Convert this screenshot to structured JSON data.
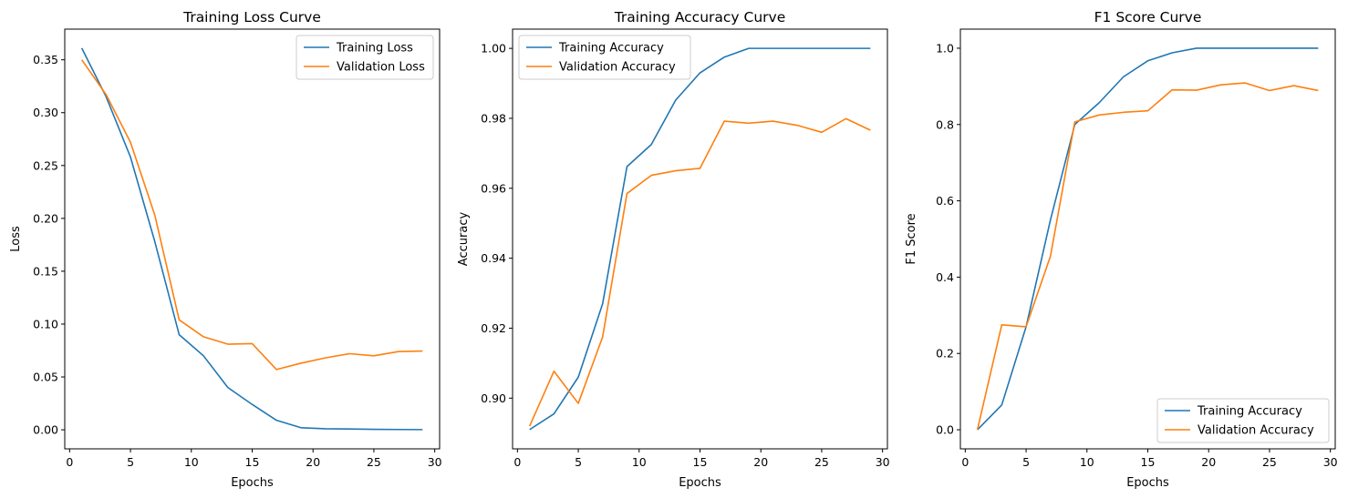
{
  "colors": {
    "series1": "#1f77b4",
    "series2": "#ff7f0e"
  },
  "chart_data": [
    {
      "type": "line",
      "title": "Training Loss Curve",
      "xlabel": "Epochs",
      "ylabel": "Loss",
      "xlim": [
        -0.4,
        30.4
      ],
      "ylim": [
        -0.018,
        0.379
      ],
      "xticks": [
        0,
        5,
        10,
        15,
        20,
        25,
        30
      ],
      "xtick_labels": [
        "0",
        "5",
        "10",
        "15",
        "20",
        "25",
        "30"
      ],
      "yticks": [
        0,
        0.05,
        0.1,
        0.15,
        0.2,
        0.25,
        0.3,
        0.35
      ],
      "ytick_labels": [
        "0.00",
        "0.05",
        "0.10",
        "0.15",
        "0.20",
        "0.25",
        "0.30",
        "0.35"
      ],
      "legend_position": "top-right",
      "grid": false,
      "x": [
        1,
        3,
        5,
        7,
        9,
        11,
        13,
        15,
        17,
        19,
        21,
        23,
        25,
        27,
        29
      ],
      "series": [
        {
          "name": "Training Loss",
          "values": [
            0.361,
            0.315,
            0.258,
            0.178,
            0.09,
            0.07,
            0.04,
            0.024,
            0.009,
            0.002,
            0.001,
            0.0008,
            0.0005,
            0.0003,
            0.0002
          ]
        },
        {
          "name": "Validation Loss",
          "values": [
            0.35,
            0.317,
            0.272,
            0.203,
            0.104,
            0.088,
            0.081,
            0.0815,
            0.057,
            0.063,
            0.068,
            0.072,
            0.07,
            0.074,
            0.0745
          ]
        }
      ]
    },
    {
      "type": "line",
      "title": "Training Accuracy Curve",
      "xlabel": "Epochs",
      "ylabel": "Accuracy",
      "xlim": [
        -0.4,
        30.4
      ],
      "ylim": [
        0.8855,
        1.0055
      ],
      "xticks": [
        0,
        5,
        10,
        15,
        20,
        25,
        30
      ],
      "xtick_labels": [
        "0",
        "5",
        "10",
        "15",
        "20",
        "25",
        "30"
      ],
      "yticks": [
        0.9,
        0.92,
        0.94,
        0.96,
        0.98,
        1.0
      ],
      "ytick_labels": [
        "0.90",
        "0.92",
        "0.94",
        "0.96",
        "0.98",
        "1.00"
      ],
      "legend_position": "top-left",
      "grid": false,
      "x": [
        1,
        3,
        5,
        7,
        9,
        11,
        13,
        15,
        17,
        19,
        21,
        23,
        25,
        27,
        29
      ],
      "series": [
        {
          "name": "Training Accuracy",
          "values": [
            0.891,
            0.8955,
            0.906,
            0.927,
            0.9662,
            0.9725,
            0.9852,
            0.993,
            0.9975,
            1.0,
            1.0,
            1.0,
            1.0,
            1.0,
            1.0
          ]
        },
        {
          "name": "Validation Accuracy",
          "values": [
            0.892,
            0.9077,
            0.8985,
            0.9175,
            0.9585,
            0.9637,
            0.965,
            0.9657,
            0.9792,
            0.9786,
            0.9792,
            0.978,
            0.976,
            0.9799,
            0.9766
          ]
        }
      ]
    },
    {
      "type": "line",
      "title": "F1 Score Curve",
      "xlabel": "Epochs",
      "ylabel": "F1 Score",
      "xlim": [
        -0.4,
        30.4
      ],
      "ylim": [
        -0.05,
        1.05
      ],
      "xticks": [
        0,
        5,
        10,
        15,
        20,
        25,
        30
      ],
      "xtick_labels": [
        "0",
        "5",
        "10",
        "15",
        "20",
        "25",
        "30"
      ],
      "yticks": [
        0,
        0.2,
        0.4,
        0.6,
        0.8,
        1.0
      ],
      "ytick_labels": [
        "0.0",
        "0.2",
        "0.4",
        "0.6",
        "0.8",
        "1.0"
      ],
      "legend_position": "bottom-right",
      "grid": false,
      "x": [
        1,
        3,
        5,
        7,
        9,
        11,
        13,
        15,
        17,
        19,
        21,
        23,
        25,
        27,
        29
      ],
      "series": [
        {
          "name": "Training Accuracy",
          "values": [
            0.0,
            0.065,
            0.27,
            0.55,
            0.8,
            0.857,
            0.925,
            0.967,
            0.988,
            1.0,
            1.0,
            1.0,
            1.0,
            1.0,
            1.0
          ]
        },
        {
          "name": "Validation Accuracy",
          "values": [
            0.0,
            0.275,
            0.27,
            0.455,
            0.807,
            0.825,
            0.832,
            0.836,
            0.891,
            0.89,
            0.904,
            0.909,
            0.889,
            0.902,
            0.889
          ]
        }
      ]
    }
  ]
}
